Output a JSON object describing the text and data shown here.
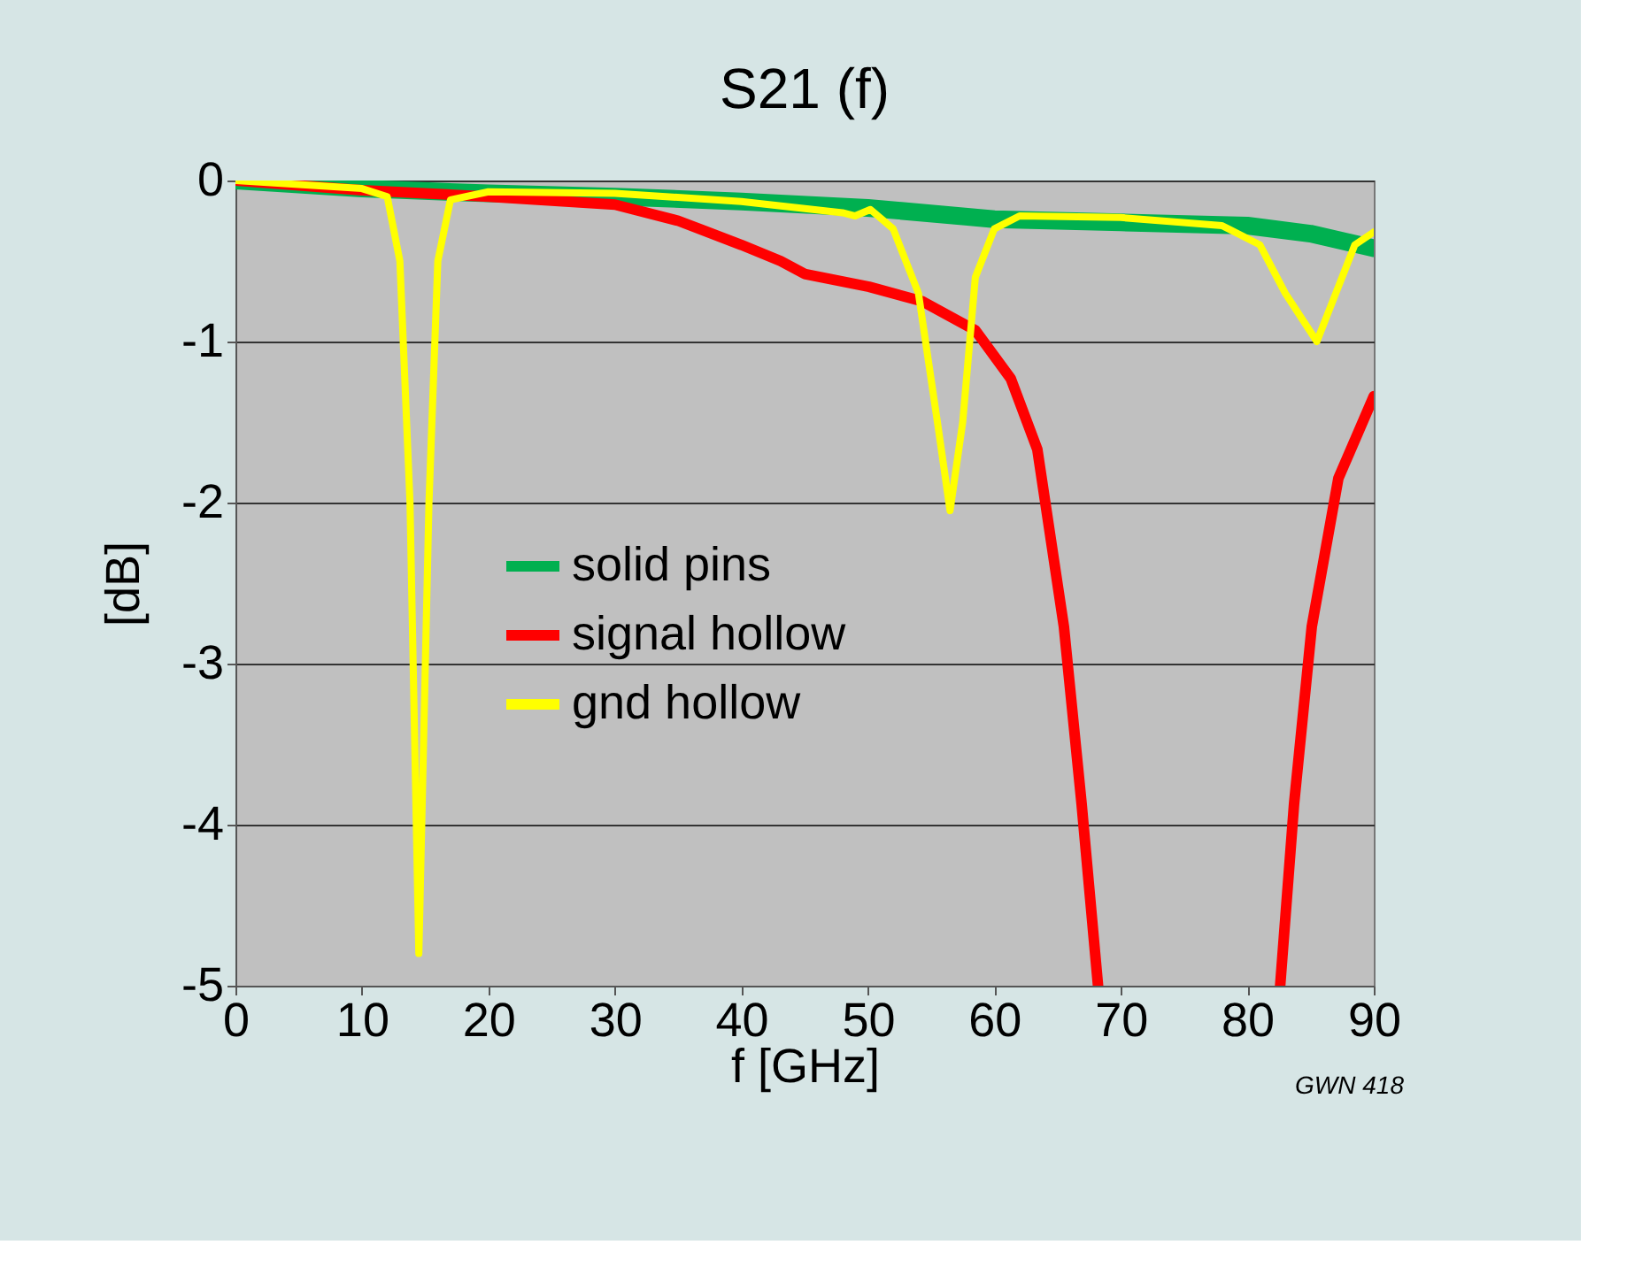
{
  "chart_data": {
    "type": "line",
    "title": "S21 (f)",
    "xlabel": "f [GHz]",
    "ylabel": "[dB]",
    "xlim": [
      0,
      90
    ],
    "xticks": [
      0,
      10,
      20,
      30,
      40,
      50,
      60,
      70,
      80,
      90
    ],
    "ylim": [
      -5,
      0
    ],
    "yticks": [
      {
        "value": -5,
        "label": "-5"
      },
      {
        "value": -4,
        "label": "-4"
      },
      {
        "value": -3,
        "label": "-3"
      },
      {
        "value": -2,
        "label": "-2"
      },
      {
        "value": -1,
        "label": "-1"
      },
      {
        "value": 0,
        "label": "0"
      }
    ],
    "grid": "y",
    "legend": "left",
    "line_style": "solid",
    "marker": "none",
    "annotations": [
      "GWN 418"
    ],
    "series": [
      {
        "name": "solid pins",
        "color": "#00b050",
        "x": [
          0,
          10,
          20,
          30,
          40,
          50,
          60,
          70,
          80,
          85,
          90
        ],
        "values": [
          0,
          -0.05,
          -0.08,
          -0.1,
          -0.13,
          -0.17,
          -0.24,
          -0.26,
          -0.28,
          -0.33,
          -0.42
        ]
      },
      {
        "name": "signal hollow",
        "color": "#ff0000",
        "x": [
          0,
          10,
          20,
          30,
          35,
          40,
          43.1,
          45,
          50.1,
          54.3,
          58.5,
          61.3,
          63.4,
          65.5,
          66.9,
          68.2,
          75,
          82.6,
          83.7,
          85.1,
          87.2,
          90
        ],
        "values": [
          0,
          -0.06,
          -0.1,
          -0.15,
          -0.25,
          -0.4,
          -0.5,
          -0.58,
          -0.66,
          -0.75,
          -0.93,
          -1.23,
          -1.67,
          -2.77,
          -3.87,
          -5,
          null,
          -5,
          -3.87,
          -2.77,
          -1.85,
          -1.34
        ]
      },
      {
        "name": "gnd hollow",
        "color": "#ffff00",
        "x": [
          0,
          10,
          12,
          13,
          13.8,
          14.5,
          15.3,
          16,
          17,
          20,
          30,
          40,
          48,
          49,
          50.2,
          52,
          54,
          55.5,
          56.5,
          57.5,
          58.5,
          60,
          62,
          70,
          78,
          81,
          83,
          85.5,
          87,
          88.5,
          90
        ],
        "values": [
          0,
          -0.05,
          -0.1,
          -0.5,
          -2,
          -4.8,
          -2,
          -0.5,
          -0.12,
          -0.07,
          -0.08,
          -0.13,
          -0.2,
          -0.22,
          -0.18,
          -0.3,
          -0.7,
          -1.5,
          -2.05,
          -1.5,
          -0.6,
          -0.3,
          -0.22,
          -0.23,
          -0.28,
          -0.4,
          -0.7,
          -1.0,
          -0.7,
          -0.4,
          -0.32
        ]
      }
    ]
  }
}
